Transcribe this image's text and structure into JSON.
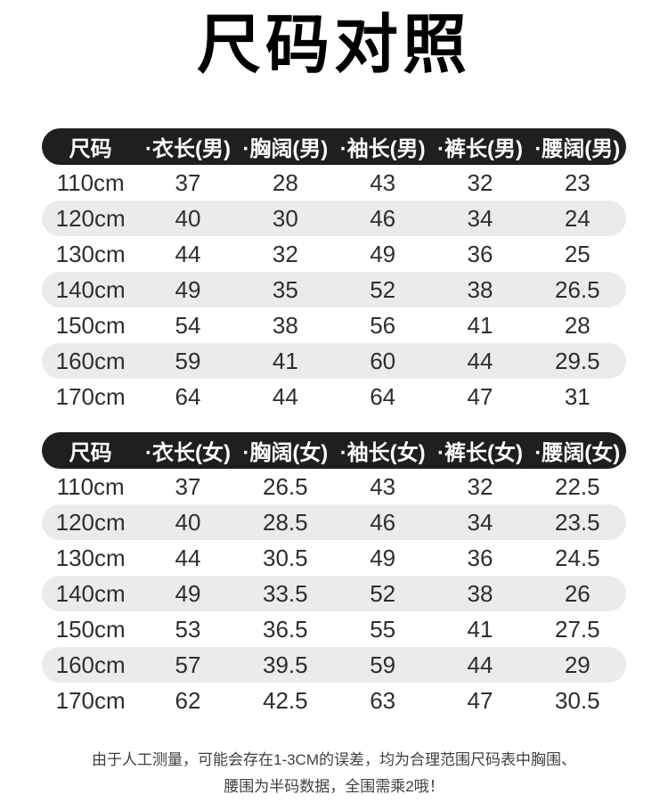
{
  "page": {
    "title": "尺码对照"
  },
  "tables": [
    {
      "name": "male",
      "header": [
        "尺码",
        "·衣长(男)",
        "·胸阔(男)",
        "·袖长(男)",
        "·裤长(男)",
        "·腰阔(男)"
      ],
      "rows": [
        [
          "110cm",
          "37",
          "28",
          "43",
          "32",
          "23"
        ],
        [
          "120cm",
          "40",
          "30",
          "46",
          "34",
          "24"
        ],
        [
          "130cm",
          "44",
          "32",
          "49",
          "36",
          "25"
        ],
        [
          "140cm",
          "49",
          "35",
          "52",
          "38",
          "26.5"
        ],
        [
          "150cm",
          "54",
          "38",
          "56",
          "41",
          "28"
        ],
        [
          "160cm",
          "59",
          "41",
          "60",
          "44",
          "29.5"
        ],
        [
          "170cm",
          "64",
          "44",
          "64",
          "47",
          "31"
        ]
      ]
    },
    {
      "name": "female",
      "header": [
        "尺码",
        "·衣长(女)",
        "·胸阔(女)",
        "·袖长(女)",
        "·裤长(女)",
        "·腰阔(女)"
      ],
      "rows": [
        [
          "110cm",
          "37",
          "26.5",
          "43",
          "32",
          "22.5"
        ],
        [
          "120cm",
          "40",
          "28.5",
          "46",
          "34",
          "23.5"
        ],
        [
          "130cm",
          "44",
          "30.5",
          "49",
          "36",
          "24.5"
        ],
        [
          "140cm",
          "49",
          "33.5",
          "52",
          "38",
          "26"
        ],
        [
          "150cm",
          "53",
          "36.5",
          "55",
          "41",
          "27.5"
        ],
        [
          "160cm",
          "57",
          "39.5",
          "59",
          "44",
          "29"
        ],
        [
          "170cm",
          "62",
          "42.5",
          "63",
          "47",
          "30.5"
        ]
      ]
    }
  ],
  "footer": {
    "line1": "由于人工测量，可能会存在1-3CM的误差，均为合理范围尺码表中胸围、",
    "line2": "腰围为半码数据，全围需乘2哦！"
  },
  "colors": {
    "header_bg": "#1f1f1f",
    "header_text": "#ffffff",
    "row_alt_bg": "#ebebeb",
    "row_text": "#2e2e2e",
    "title_text": "#000000",
    "footer_text": "#404040"
  }
}
